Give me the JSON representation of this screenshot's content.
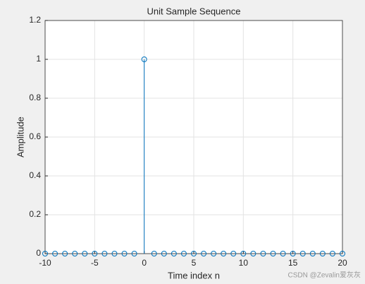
{
  "chart_data": {
    "type": "stem",
    "title": "Unit Sample Sequence",
    "xlabel": "Time index n",
    "ylabel": "Amplitude",
    "x": [
      -10,
      -9,
      -8,
      -7,
      -6,
      -5,
      -4,
      -3,
      -2,
      -1,
      0,
      1,
      2,
      3,
      4,
      5,
      6,
      7,
      8,
      9,
      10,
      11,
      12,
      13,
      14,
      15,
      16,
      17,
      18,
      19,
      20
    ],
    "values": [
      0,
      0,
      0,
      0,
      0,
      0,
      0,
      0,
      0,
      0,
      1,
      0,
      0,
      0,
      0,
      0,
      0,
      0,
      0,
      0,
      0,
      0,
      0,
      0,
      0,
      0,
      0,
      0,
      0,
      0,
      0
    ],
    "color": "#0072bd",
    "xlim": [
      -10,
      20
    ],
    "xticks": [
      -10,
      -5,
      0,
      5,
      10,
      15,
      20
    ],
    "ylim": [
      0,
      1.2
    ],
    "yticks": [
      0,
      0.2,
      0.4,
      0.6,
      0.8,
      1,
      1.2
    ],
    "grid": true
  },
  "watermark": "CSDN @Zevalin爱灰灰"
}
